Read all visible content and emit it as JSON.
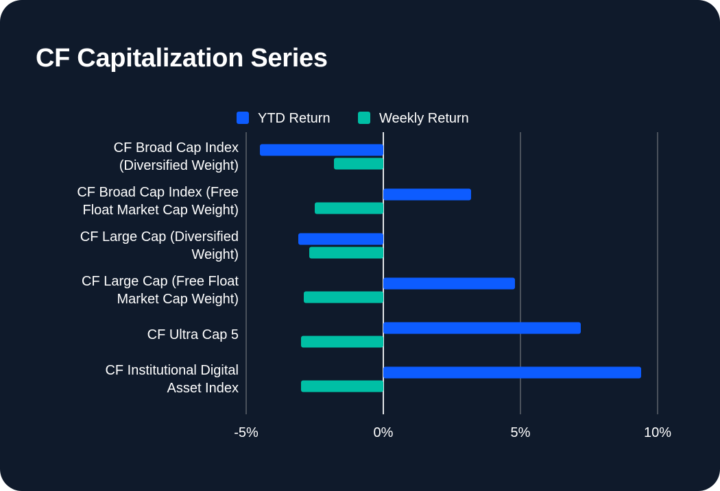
{
  "title": "CF Capitalization Series",
  "colors": {
    "background": "#0f1a2b",
    "ytd": "#0d5cff",
    "weekly": "#00bfa5",
    "grid": "#4a515b",
    "zero": "#e6e8eb",
    "text": "#ffffff"
  },
  "chart_data": {
    "type": "bar",
    "orientation": "horizontal",
    "title": "CF Capitalization Series",
    "legend": [
      "YTD Return",
      "Weekly Return"
    ],
    "legend_position": "top-center",
    "categories": [
      [
        "CF Broad Cap Index",
        "(Diversified Weight)"
      ],
      [
        "CF Broad Cap Index (Free",
        "Float Market Cap Weight)"
      ],
      [
        "CF Large Cap (Diversified",
        "Weight)"
      ],
      [
        "CF Large Cap (Free Float",
        "Market Cap Weight)"
      ],
      [
        "CF Ultra Cap 5"
      ],
      [
        "CF Institutional Digital",
        "Asset Index"
      ]
    ],
    "series": [
      {
        "name": "YTD Return",
        "values": [
          -4.5,
          3.2,
          -3.1,
          4.8,
          7.2,
          9.4
        ]
      },
      {
        "name": "Weekly Return",
        "values": [
          -1.8,
          -2.5,
          -2.7,
          -2.9,
          -3.0,
          -3.0
        ]
      }
    ],
    "xlim": [
      -5,
      10
    ],
    "xticks": [
      -5,
      0,
      5,
      10
    ],
    "xtick_labels": [
      "-5%",
      "0%",
      "5%",
      "10%"
    ],
    "grid": true
  }
}
